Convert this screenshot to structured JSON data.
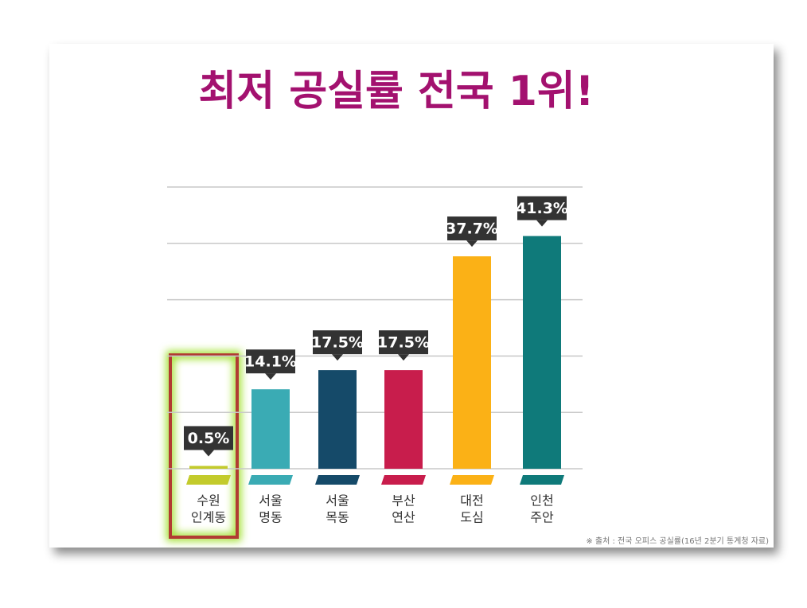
{
  "chart_data": {
    "type": "bar",
    "title": "최저 공실률 전국 1위!",
    "categories": [
      [
        "수원",
        "인계동"
      ],
      [
        "서울",
        "명동"
      ],
      [
        "서울",
        "목동"
      ],
      [
        "부산",
        "연산"
      ],
      [
        "대전",
        "도심"
      ],
      [
        "인천",
        "주안"
      ]
    ],
    "values": [
      0.5,
      14.1,
      17.5,
      17.5,
      37.7,
      41.3
    ],
    "value_labels": [
      "0.5%",
      "14.1%",
      "17.5%",
      "17.5%",
      "37.7%",
      "41.3%"
    ],
    "colors": [
      "#c3cb2c",
      "#3aabb4",
      "#154a69",
      "#c81d4c",
      "#fbb116",
      "#0f7a7a"
    ],
    "ylim": [
      0,
      50
    ],
    "yticks": [
      0,
      10,
      20,
      30,
      40,
      50
    ],
    "grid": true,
    "source": "※ 출처 : 전국 오피스 공실률(16년 2분기 통계청 자료)"
  }
}
